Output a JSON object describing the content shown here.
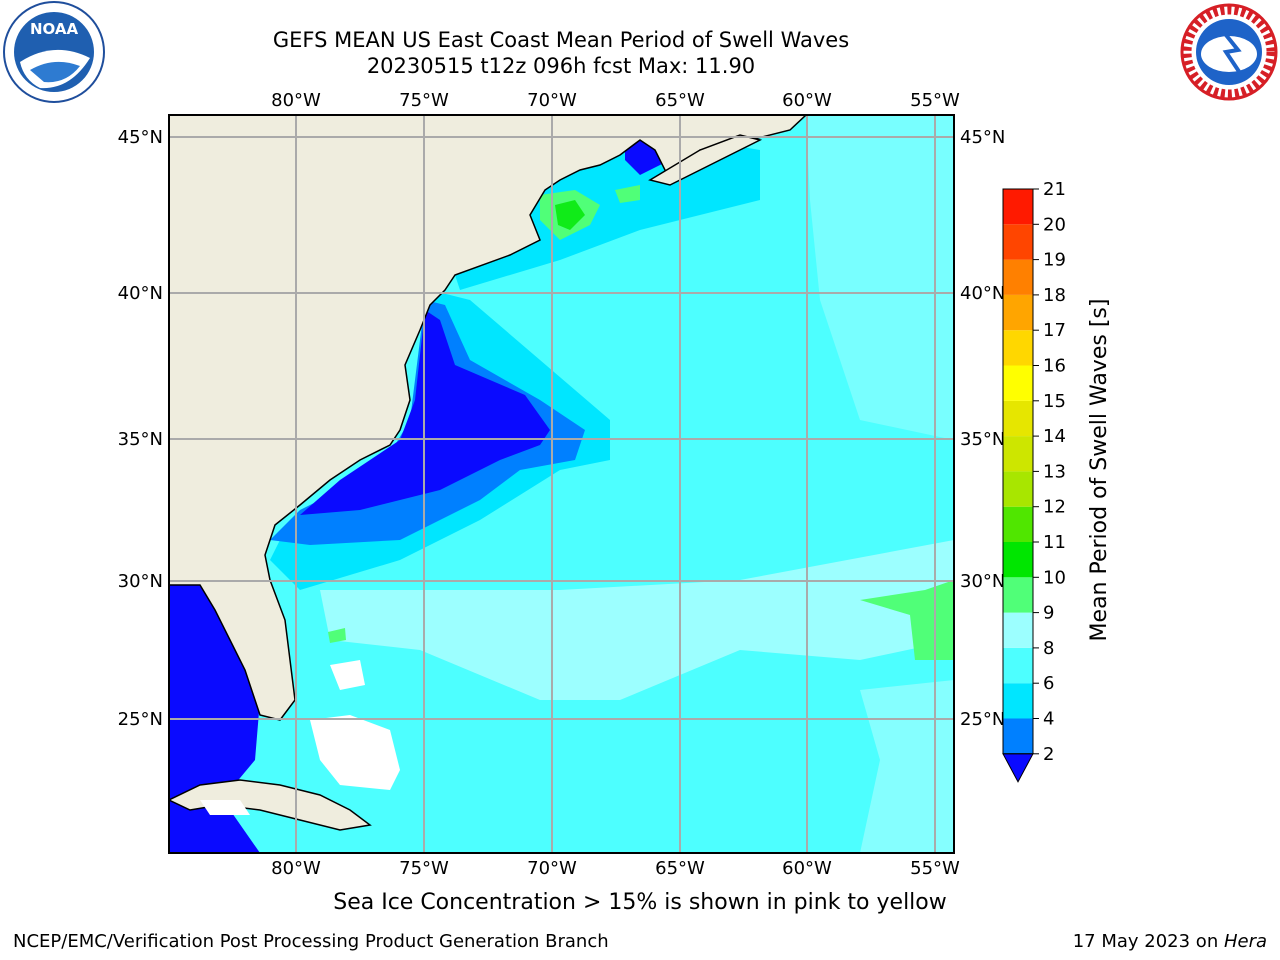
{
  "header": {
    "title_line1": "GEFS MEAN US East Coast Mean Period of Swell Waves",
    "title_line2": "20230515 t12z 096h fcst   Max: 11.90"
  },
  "logos": {
    "noaa_text": "NOAA",
    "noaa_ring_text": "NATIONAL OCEANIC AND ATMOSPHERIC ADMINISTRATION · U.S. DEPARTMENT OF COMMERCE",
    "nws_ring_text": "NATIONAL WEATHER SERVICE"
  },
  "map": {
    "lon_labels_top": [
      "80°W",
      "75°W",
      "70°W",
      "65°W",
      "60°W",
      "55°W"
    ],
    "lon_labels_bottom": [
      "80°W",
      "75°W",
      "70°W",
      "65°W",
      "60°W",
      "55°W"
    ],
    "lat_labels_left": [
      "45°N",
      "40°N",
      "35°N",
      "30°N",
      "25°N"
    ],
    "lat_labels_right": [
      "45°N",
      "40°N",
      "35°N",
      "30°N",
      "25°N"
    ],
    "lon_range": [
      -85,
      -54
    ],
    "lat_range": [
      20,
      46
    ],
    "land_color": "#efedde",
    "max_value": 11.9
  },
  "colorbar": {
    "label": "Mean Period of Swell Waves [s]",
    "ticks": [
      "2",
      "4",
      "6",
      "8",
      "9",
      "10",
      "11",
      "12",
      "13",
      "14",
      "15",
      "16",
      "17",
      "18",
      "19",
      "20",
      "21"
    ],
    "colors": [
      "#0a0aff",
      "#0080ff",
      "#00e6ff",
      "#4dffff",
      "#9cffff",
      "#50ff78",
      "#00e600",
      "#50e600",
      "#a8e600",
      "#cde600",
      "#e6e600",
      "#ffff00",
      "#ffd700",
      "#ffa500",
      "#ff8000",
      "#ff4500",
      "#ff1a00",
      "#ff0000"
    ],
    "below_color": "#0a0aff"
  },
  "note": "Sea Ice Concentration > 15% is shown in pink to yellow",
  "footer": {
    "left": "NCEP/EMC/Verification Post Processing Product Generation Branch",
    "right_date": "17 May 2023 on ",
    "right_host": "Hera"
  }
}
